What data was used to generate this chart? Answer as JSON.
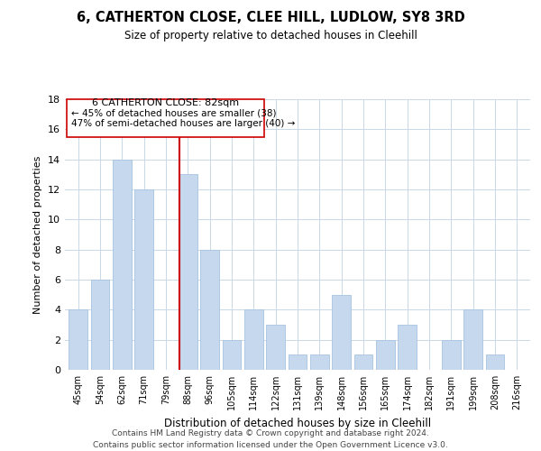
{
  "title": "6, CATHERTON CLOSE, CLEE HILL, LUDLOW, SY8 3RD",
  "subtitle": "Size of property relative to detached houses in Cleehill",
  "xlabel": "Distribution of detached houses by size in Cleehill",
  "ylabel": "Number of detached properties",
  "bar_color": "#c5d8ed",
  "bar_edge_color": "#a8c4e0",
  "categories": [
    "45sqm",
    "54sqm",
    "62sqm",
    "71sqm",
    "79sqm",
    "88sqm",
    "96sqm",
    "105sqm",
    "114sqm",
    "122sqm",
    "131sqm",
    "139sqm",
    "148sqm",
    "156sqm",
    "165sqm",
    "174sqm",
    "182sqm",
    "191sqm",
    "199sqm",
    "208sqm",
    "216sqm"
  ],
  "values": [
    4,
    6,
    14,
    12,
    0,
    13,
    8,
    2,
    4,
    3,
    1,
    1,
    5,
    1,
    2,
    3,
    0,
    2,
    4,
    1,
    0
  ],
  "ylim": [
    0,
    18
  ],
  "yticks": [
    0,
    2,
    4,
    6,
    8,
    10,
    12,
    14,
    16,
    18
  ],
  "marker_label": "6 CATHERTON CLOSE: 82sqm",
  "annotation_line1": "← 45% of detached houses are smaller (38)",
  "annotation_line2": "47% of semi-detached houses are larger (40) →",
  "marker_color": "#cc0000",
  "background_color": "#ffffff",
  "grid_color": "#c8d8e8",
  "footer_line1": "Contains HM Land Registry data © Crown copyright and database right 2024.",
  "footer_line2": "Contains public sector information licensed under the Open Government Licence v3.0."
}
